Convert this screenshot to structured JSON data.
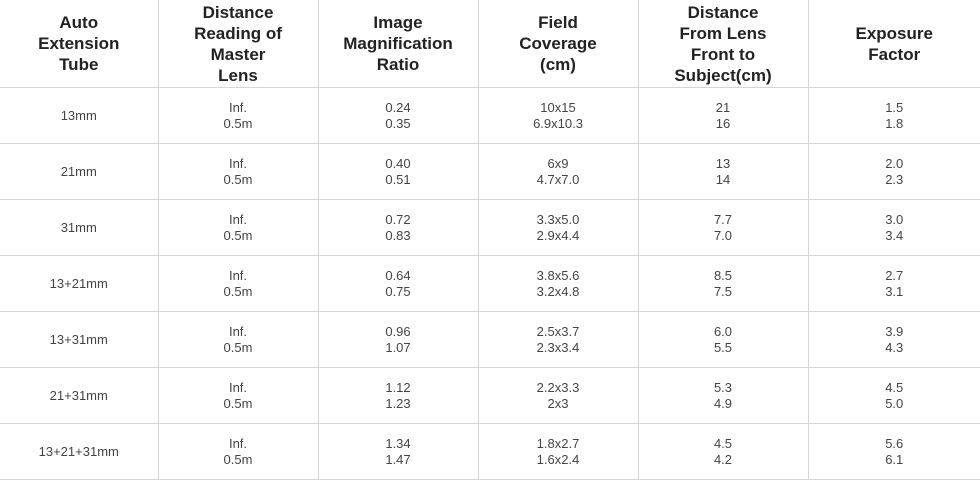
{
  "table": {
    "header": [
      [
        "Auto",
        "Extension",
        "Tube"
      ],
      [
        "Distance",
        "Reading of",
        "Master",
        "Lens"
      ],
      [
        "Image",
        "Magnification",
        "Ratio"
      ],
      [
        "Field",
        "Coverage",
        "(cm)"
      ],
      [
        "Distance",
        "From Lens",
        "Front to",
        "Subject(cm)"
      ],
      [
        "Exposure",
        "Factor"
      ]
    ],
    "rows": [
      [
        [
          "13mm"
        ],
        [
          "Inf.",
          "0.5m"
        ],
        [
          "0.24",
          "0.35"
        ],
        [
          "10x15",
          "6.9x10.3"
        ],
        [
          "21",
          "16"
        ],
        [
          "1.5",
          "1.8"
        ]
      ],
      [
        [
          "21mm"
        ],
        [
          "Inf.",
          "0.5m"
        ],
        [
          "0.40",
          "0.51"
        ],
        [
          "6x9",
          "4.7x7.0"
        ],
        [
          "13",
          "14"
        ],
        [
          "2.0",
          "2.3"
        ]
      ],
      [
        [
          "31mm"
        ],
        [
          "Inf.",
          "0.5m"
        ],
        [
          "0.72",
          "0.83"
        ],
        [
          "3.3x5.0",
          "2.9x4.4"
        ],
        [
          "7.7",
          "7.0"
        ],
        [
          "3.0",
          "3.4"
        ]
      ],
      [
        [
          "13+21mm"
        ],
        [
          "Inf.",
          "0.5m"
        ],
        [
          "0.64",
          "0.75"
        ],
        [
          "3.8x5.6",
          "3.2x4.8"
        ],
        [
          "8.5",
          "7.5"
        ],
        [
          "2.7",
          "3.1"
        ]
      ],
      [
        [
          "13+31mm"
        ],
        [
          "Inf.",
          "0.5m"
        ],
        [
          "0.96",
          "1.07"
        ],
        [
          "2.5x3.7",
          "2.3x3.4"
        ],
        [
          "6.0",
          "5.5"
        ],
        [
          "3.9",
          "4.3"
        ]
      ],
      [
        [
          "21+31mm"
        ],
        [
          "Inf.",
          "0.5m"
        ],
        [
          "1.12",
          "1.23"
        ],
        [
          "2.2x3.3",
          "2x3"
        ],
        [
          "5.3",
          "4.9"
        ],
        [
          "4.5",
          "5.0"
        ]
      ],
      [
        [
          "13+21+31mm"
        ],
        [
          "Inf.",
          "0.5m"
        ],
        [
          "1.34",
          "1.47"
        ],
        [
          "1.8x2.7",
          "1.6x2.4"
        ],
        [
          "4.5",
          "4.2"
        ],
        [
          "5.6",
          "6.1"
        ]
      ]
    ]
  }
}
